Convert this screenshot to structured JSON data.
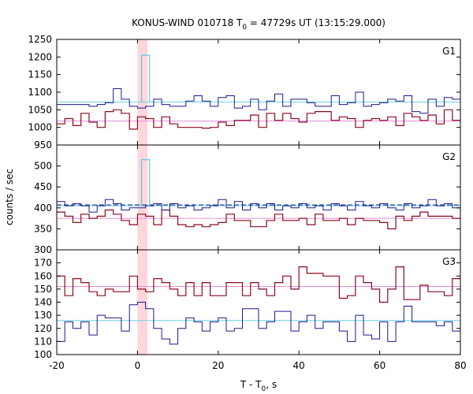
{
  "chart_data": {
    "type": "line",
    "title": {
      "prefix": "KONUS-WIND 010718 T",
      "sub": "0",
      "suffix": " = 47729s UT (13:15:29.000)"
    },
    "xlabel": {
      "main": "T - T",
      "sub": "0",
      "suffix": ", s"
    },
    "ylabel": "counts / sec",
    "xlim": [
      -20,
      80
    ],
    "x_ticks": [
      -20,
      0,
      20,
      40,
      60,
      80
    ],
    "highlight_band": {
      "x0": 0,
      "x1": 2.5,
      "color": "#ffd6dc"
    },
    "colors": {
      "dark_red": "#8b0a1e",
      "navy": "#1a1a8c",
      "cyan": "#5ec8e6",
      "pink_line": "#e58ed8",
      "cyan_line": "#6fd0ea",
      "dashed": "#1e3a9a"
    },
    "bin_width": 2,
    "x_start": -20,
    "panels": [
      {
        "label": "G1",
        "ylim": [
          950,
          1250
        ],
        "y_ticks": [
          950,
          1000,
          1050,
          1100,
          1150,
          1200,
          1250
        ],
        "red_mean": 1018,
        "blue_mean": 1072,
        "red": [
          1010,
          1025,
          1005,
          1040,
          1015,
          1000,
          1045,
          1050,
          1040,
          995,
          1030,
          1025,
          1000,
          1030,
          1010,
          1000,
          1000,
          1000,
          998,
          1000,
          1015,
          1005,
          1020,
          1020,
          1035,
          1000,
          1040,
          1020,
          1040,
          1025,
          1015,
          1040,
          1045,
          1045,
          1020,
          1030,
          1025,
          1000,
          1020,
          1025,
          1020,
          1030,
          1005,
          1040,
          1030,
          1020,
          1035,
          1010,
          1050,
          1020
        ],
        "blue": [
          1065,
          1065,
          1065,
          1065,
          1060,
          1065,
          1070,
          1110,
          1080,
          1060,
          1055,
          1060,
          1080,
          1065,
          1060,
          1060,
          1075,
          1090,
          1075,
          1060,
          1085,
          1090,
          1055,
          1060,
          1080,
          1050,
          1075,
          1095,
          1060,
          1080,
          1080,
          1070,
          1060,
          1060,
          1090,
          1065,
          1070,
          1100,
          1060,
          1065,
          1070,
          1080,
          1075,
          1090,
          1045,
          1040,
          1080,
          1060,
          1085,
          1080
        ],
        "cyan_spike": {
          "x0": 1,
          "x1": 3,
          "value": 1205,
          "base": 1072
        }
      },
      {
        "label": "G2",
        "ylim": [
          300,
          550
        ],
        "y_ticks": [
          300,
          350,
          400,
          450,
          500
        ],
        "red_mean": 375,
        "blue_mean": 405,
        "red": [
          390,
          380,
          365,
          385,
          375,
          380,
          395,
          385,
          370,
          360,
          385,
          380,
          360,
          395,
          380,
          360,
          355,
          360,
          355,
          360,
          365,
          385,
          370,
          370,
          355,
          355,
          370,
          385,
          370,
          370,
          375,
          360,
          385,
          370,
          370,
          375,
          360,
          375,
          370,
          370,
          365,
          350,
          380,
          370,
          380,
          390,
          380,
          380,
          380,
          375
        ],
        "blue": [
          415,
          405,
          410,
          405,
          390,
          405,
          420,
          410,
          395,
          400,
          400,
          405,
          410,
          395,
          410,
          400,
          405,
          395,
          400,
          405,
          420,
          400,
          415,
          395,
          410,
          400,
          410,
          395,
          405,
          400,
          410,
          400,
          405,
          395,
          410,
          405,
          395,
          415,
          405,
          400,
          410,
          400,
          395,
          410,
          400,
          405,
          420,
          405,
          410,
          400
        ],
        "cyan_spike": {
          "x0": 1,
          "x1": 3,
          "value": 515,
          "base": 405
        },
        "dashed_mean": 407
      },
      {
        "label": "G3",
        "ylim": [
          100,
          180
        ],
        "y_ticks": [
          100,
          110,
          120,
          130,
          140,
          150,
          160,
          170
        ],
        "red_mean": 152,
        "blue_mean": 126,
        "red": [
          160,
          145,
          158,
          155,
          148,
          145,
          150,
          148,
          148,
          160,
          150,
          148,
          158,
          155,
          150,
          145,
          155,
          145,
          155,
          145,
          145,
          155,
          155,
          145,
          155,
          150,
          145,
          155,
          160,
          150,
          167,
          162,
          162,
          160,
          160,
          143,
          145,
          160,
          155,
          150,
          140,
          150,
          167,
          142,
          142,
          153,
          148,
          148,
          145,
          158
        ],
        "blue": [
          110,
          125,
          120,
          125,
          115,
          130,
          128,
          128,
          118,
          138,
          140,
          135,
          120,
          112,
          108,
          120,
          128,
          125,
          118,
          125,
          128,
          118,
          120,
          135,
          135,
          120,
          125,
          133,
          133,
          118,
          125,
          130,
          120,
          125,
          125,
          118,
          110,
          130,
          115,
          112,
          125,
          110,
          125,
          137,
          125,
          125,
          125,
          122,
          125,
          118
        ]
      }
    ]
  }
}
